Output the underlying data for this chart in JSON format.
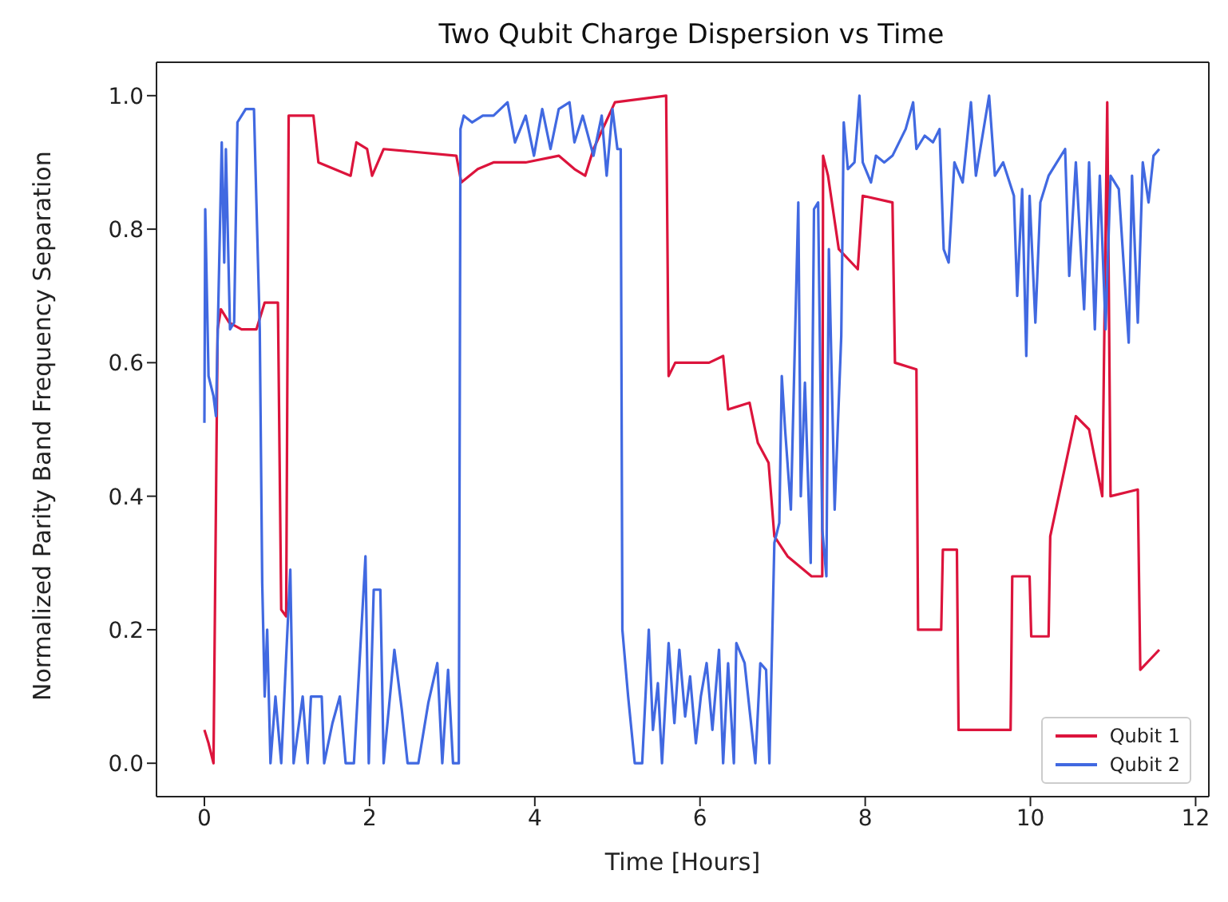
{
  "chart_data": {
    "type": "line",
    "title": "Two Qubit Charge Dispersion vs Time",
    "xlabel": "Time [Hours]",
    "ylabel": "Normalized Parity Band Frequency Separation",
    "xlim": [
      -0.58,
      12.16
    ],
    "xticks": [
      0,
      2,
      4,
      6,
      8,
      10,
      12
    ],
    "ylim": [
      -0.05,
      1.05
    ],
    "yticks": [
      {
        "value": 0,
        "label": "0.0"
      },
      {
        "value": 0.2,
        "label": "0.2"
      },
      {
        "value": 0.4,
        "label": "0.4"
      },
      {
        "value": 0.6,
        "label": "0.6"
      },
      {
        "value": 0.8,
        "label": "0.8"
      },
      {
        "value": 1,
        "label": "1.0"
      }
    ],
    "legend": "bottom right",
    "marker": "none",
    "line_style": "solid",
    "series": [
      {
        "name": "Qubit 1",
        "color": "#dc143c",
        "x": [
          0,
          0.05,
          0.11,
          0.16,
          0.2,
          0.3,
          0.45,
          0.63,
          0.73,
          0.89,
          0.93,
          0.99,
          1.02,
          1.32,
          1.38,
          1.77,
          1.84,
          1.97,
          2.03,
          2.17,
          3.05,
          3.11,
          3.31,
          3.5,
          3.89,
          4.29,
          4.48,
          4.61,
          4.71,
          4.97,
          5.59,
          5.62,
          5.7,
          6.11,
          6.28,
          6.34,
          6.6,
          6.7,
          6.83,
          6.9,
          7.06,
          7.35,
          7.48,
          7.49,
          7.55,
          7.68,
          7.91,
          7.97,
          8.33,
          8.36,
          8.62,
          8.64,
          8.92,
          8.94,
          9.11,
          9.13,
          9.76,
          9.78,
          9.99,
          10.01,
          10.22,
          10.24,
          10.55,
          10.71,
          10.87,
          10.93,
          10.97,
          11.3,
          11.33,
          11.56
        ],
        "values": [
          0.05,
          0.03,
          0.0,
          0.65,
          0.68,
          0.66,
          0.65,
          0.65,
          0.69,
          0.69,
          0.23,
          0.22,
          0.97,
          0.97,
          0.9,
          0.88,
          0.93,
          0.92,
          0.88,
          0.92,
          0.91,
          0.87,
          0.89,
          0.9,
          0.9,
          0.91,
          0.89,
          0.88,
          0.92,
          0.99,
          1.0,
          0.58,
          0.6,
          0.6,
          0.61,
          0.53,
          0.54,
          0.48,
          0.45,
          0.34,
          0.31,
          0.28,
          0.28,
          0.91,
          0.88,
          0.77,
          0.74,
          0.85,
          0.84,
          0.6,
          0.59,
          0.2,
          0.2,
          0.32,
          0.32,
          0.05,
          0.05,
          0.28,
          0.28,
          0.19,
          0.19,
          0.34,
          0.52,
          0.5,
          0.4,
          0.99,
          0.4,
          0.41,
          0.14,
          0.17
        ]
      },
      {
        "name": "Qubit 2",
        "color": "#4169e1",
        "x": [
          0,
          0.01,
          0.05,
          0.11,
          0.14,
          0.21,
          0.24,
          0.26,
          0.31,
          0.36,
          0.4,
          0.5,
          0.6,
          0.67,
          0.7,
          0.73,
          0.76,
          0.8,
          0.86,
          0.93,
          0.99,
          1.04,
          1.08,
          1.19,
          1.25,
          1.29,
          1.35,
          1.42,
          1.45,
          1.55,
          1.64,
          1.71,
          1.81,
          1.95,
          1.99,
          2.05,
          2.13,
          2.17,
          2.3,
          2.39,
          2.46,
          2.59,
          2.71,
          2.82,
          2.88,
          2.95,
          3.01,
          3.08,
          3.1,
          3.14,
          3.24,
          3.37,
          3.5,
          3.67,
          3.76,
          3.89,
          3.99,
          4.09,
          4.19,
          4.29,
          4.42,
          4.48,
          4.58,
          4.71,
          4.81,
          4.87,
          4.94,
          5.0,
          5.04,
          5.06,
          5.13,
          5.21,
          5.3,
          5.38,
          5.43,
          5.49,
          5.54,
          5.62,
          5.69,
          5.75,
          5.82,
          5.88,
          5.95,
          6.01,
          6.08,
          6.15,
          6.23,
          6.28,
          6.34,
          6.41,
          6.44,
          6.54,
          6.6,
          6.67,
          6.73,
          6.8,
          6.84,
          6.9,
          6.96,
          6.99,
          7.03,
          7.1,
          7.19,
          7.22,
          7.27,
          7.34,
          7.38,
          7.43,
          7.48,
          7.53,
          7.56,
          7.63,
          7.71,
          7.74,
          7.79,
          7.87,
          7.93,
          7.97,
          8.07,
          8.13,
          8.23,
          8.33,
          8.41,
          8.49,
          8.58,
          8.62,
          8.72,
          8.82,
          8.9,
          8.95,
          9.01,
          9.08,
          9.18,
          9.28,
          9.34,
          9.5,
          9.57,
          9.67,
          9.8,
          9.84,
          9.9,
          9.95,
          9.99,
          10.06,
          10.12,
          10.22,
          10.32,
          10.42,
          10.47,
          10.55,
          10.65,
          10.71,
          10.78,
          10.84,
          10.91,
          10.97,
          11.07,
          11.19,
          11.23,
          11.3,
          11.36,
          11.43,
          11.49,
          11.56
        ],
        "values": [
          0.51,
          0.83,
          0.58,
          0.55,
          0.52,
          0.93,
          0.75,
          0.92,
          0.65,
          0.66,
          0.96,
          0.98,
          0.98,
          0.65,
          0.27,
          0.1,
          0.2,
          0.0,
          0.1,
          0.0,
          0.16,
          0.29,
          0.0,
          0.1,
          0.0,
          0.1,
          0.1,
          0.1,
          0.0,
          0.06,
          0.1,
          0.0,
          0.0,
          0.31,
          0.0,
          0.26,
          0.26,
          0.0,
          0.17,
          0.08,
          0.0,
          0.0,
          0.09,
          0.15,
          0.0,
          0.14,
          0.0,
          0.0,
          0.95,
          0.97,
          0.96,
          0.97,
          0.97,
          0.99,
          0.93,
          0.97,
          0.91,
          0.98,
          0.92,
          0.98,
          0.99,
          0.93,
          0.97,
          0.91,
          0.97,
          0.88,
          0.98,
          0.92,
          0.92,
          0.2,
          0.1,
          0.0,
          0.0,
          0.2,
          0.05,
          0.12,
          0.0,
          0.18,
          0.06,
          0.17,
          0.07,
          0.13,
          0.03,
          0.1,
          0.15,
          0.05,
          0.17,
          0.0,
          0.15,
          0.0,
          0.18,
          0.15,
          0.08,
          0.0,
          0.15,
          0.14,
          0.0,
          0.33,
          0.36,
          0.58,
          0.5,
          0.38,
          0.84,
          0.4,
          0.57,
          0.3,
          0.83,
          0.84,
          0.35,
          0.28,
          0.77,
          0.38,
          0.64,
          0.96,
          0.89,
          0.9,
          1.0,
          0.9,
          0.87,
          0.91,
          0.9,
          0.91,
          0.93,
          0.95,
          0.99,
          0.92,
          0.94,
          0.93,
          0.95,
          0.77,
          0.75,
          0.9,
          0.87,
          0.99,
          0.88,
          1.0,
          0.88,
          0.9,
          0.85,
          0.7,
          0.86,
          0.61,
          0.85,
          0.66,
          0.84,
          0.88,
          0.9,
          0.92,
          0.73,
          0.9,
          0.68,
          0.9,
          0.65,
          0.88,
          0.65,
          0.88,
          0.86,
          0.63,
          0.88,
          0.66,
          0.9,
          0.84,
          0.91,
          0.92
        ]
      }
    ]
  }
}
